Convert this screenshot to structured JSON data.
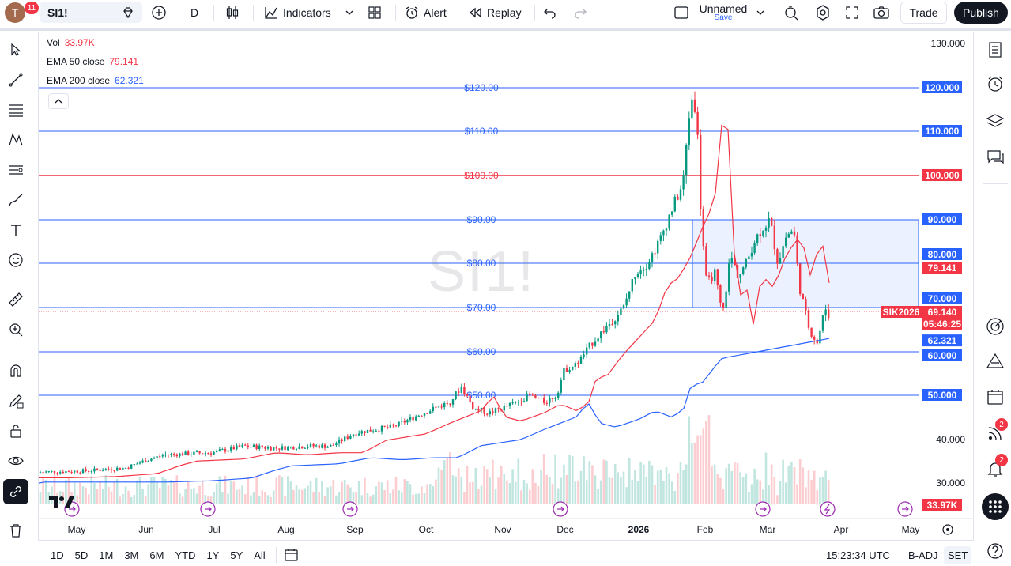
{
  "header": {
    "avatar_initial": "T",
    "avatar_badge": "11",
    "symbol": "SI1!",
    "interval": "D",
    "indicators_label": "Indicators",
    "alert_label": "Alert",
    "replay_label": "Replay",
    "layout_name": "Unnamed",
    "layout_save": "Save",
    "trade_label": "Trade",
    "publish_label": "Publish"
  },
  "legend": {
    "vol_label": "Vol",
    "vol_value": "33.97K",
    "ema50_label": "EMA 50 close",
    "ema50_value": "79.141",
    "ema200_label": "EMA 200 close",
    "ema200_value": "62.321"
  },
  "watermark": "SI1!",
  "price_axis": {
    "ticks": [
      "130.000",
      "40.000",
      "30.000"
    ],
    "highlighted": [
      {
        "text": "120.000",
        "color": "#2962ff"
      },
      {
        "text": "110.000",
        "color": "#2962ff"
      },
      {
        "text": "100.000",
        "color": "#f23645"
      },
      {
        "text": "90.000",
        "color": "#2962ff"
      },
      {
        "text": "80.000",
        "color": "#2962ff"
      },
      {
        "text": "79.141",
        "color": "#f23645"
      },
      {
        "text": "70.000",
        "color": "#2962ff"
      },
      {
        "text": "69.140",
        "color": "#f23645"
      },
      {
        "text": "05:46:25",
        "color": "#f23645"
      },
      {
        "text": "62.321",
        "color": "#2962ff"
      },
      {
        "text": "60.000",
        "color": "#2962ff"
      },
      {
        "text": "50.000",
        "color": "#2962ff"
      },
      {
        "text": "33.97K",
        "color": "#f23645"
      }
    ],
    "contract_tag": "SIK2026"
  },
  "level_labels": [
    "$120.00",
    "$110.00",
    "$100.00",
    "$90.00",
    "$80.00",
    "$70.00",
    "$60.00",
    "$50.00"
  ],
  "time_axis": [
    "May",
    "Jun",
    "Jul",
    "Aug",
    "Sep",
    "Oct",
    "Nov",
    "Dec",
    "2026",
    "Feb",
    "Mar",
    "Apr",
    "May"
  ],
  "bottom_bar": {
    "ranges": [
      "1D",
      "5D",
      "1M",
      "3M",
      "6M",
      "YTD",
      "1Y",
      "5Y",
      "All"
    ],
    "clock": "15:23:34 UTC",
    "badj": "B-ADJ",
    "set": "SET"
  },
  "right_badges": {
    "ideas": "2",
    "alerts": "2"
  },
  "colors": {
    "up": "#089981",
    "down": "#f23645",
    "ema50": "#f23645",
    "ema200": "#2962ff",
    "level": "#2962ff",
    "level_red": "#f23645",
    "zone": "#e3ebff"
  }
}
